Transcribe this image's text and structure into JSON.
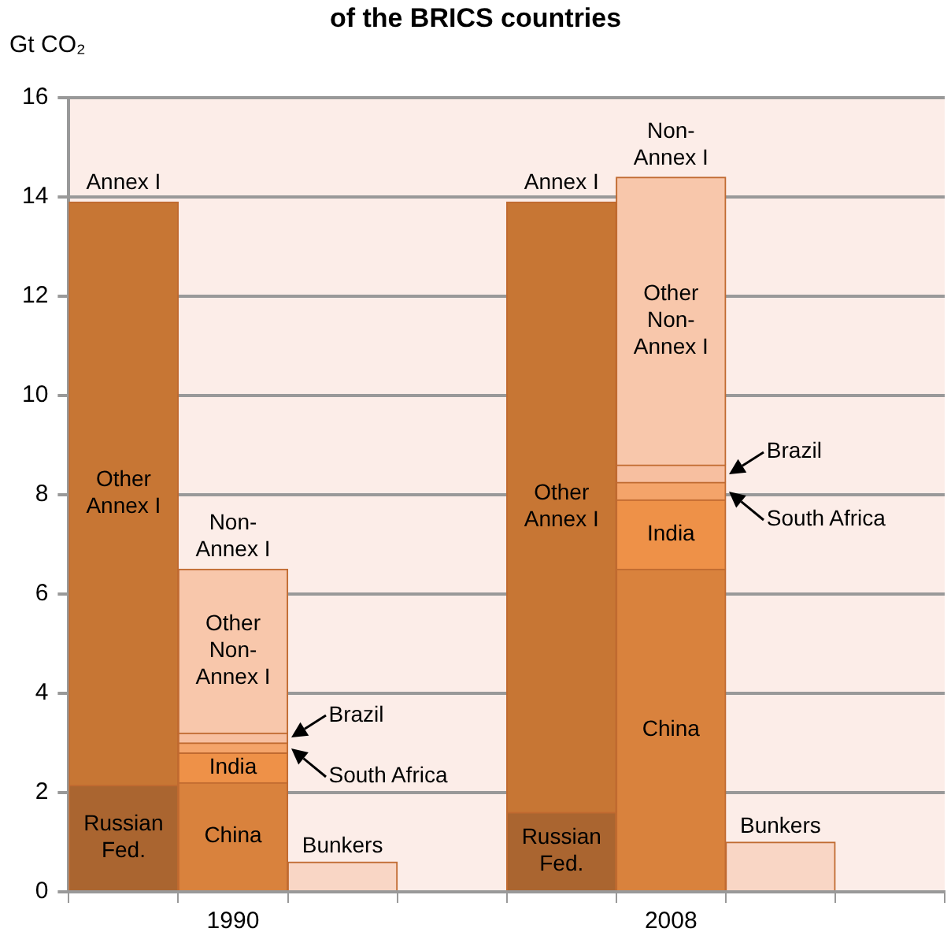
{
  "chart_data": {
    "type": "bar",
    "title": "of the BRICS countries",
    "ylabel": "Gt CO₂",
    "categories": [
      null,
      "1990",
      null,
      null,
      null,
      "2008",
      null,
      null
    ],
    "stacked": true,
    "series": [
      {
        "name": "Russian Fed.",
        "color": "#aa6530",
        "values": [
          2.15,
          null,
          null,
          null,
          1.6,
          null,
          null,
          null
        ]
      },
      {
        "name": "Other Annex I",
        "color": "#c77634",
        "values": [
          11.75,
          null,
          null,
          null,
          12.3,
          null,
          null,
          null
        ]
      },
      {
        "name": "China",
        "color": "#d9823d",
        "values": [
          null,
          2.2,
          null,
          null,
          null,
          6.5,
          null,
          null
        ]
      },
      {
        "name": "India",
        "color": "#ee9148",
        "values": [
          null,
          0.6,
          null,
          null,
          null,
          1.4,
          null,
          null
        ]
      },
      {
        "name": "South Africa",
        "color": "#f4a46a",
        "values": [
          null,
          0.2,
          null,
          null,
          null,
          0.35,
          null,
          null
        ]
      },
      {
        "name": "Brazil",
        "color": "#f7bfa0",
        "values": [
          null,
          0.2,
          null,
          null,
          null,
          0.35,
          null,
          null
        ]
      },
      {
        "name": "Other Non-Annex I",
        "color": "#f8c7ab",
        "values": [
          null,
          3.3,
          null,
          null,
          null,
          5.8,
          null,
          null
        ]
      },
      {
        "name": "Bunkers",
        "color": "#f9d6c5",
        "values": [
          null,
          null,
          0.6,
          null,
          null,
          null,
          1.0,
          null
        ]
      }
    ],
    "annotations": [
      "Annex I",
      "Non-Annex I",
      "Annex I",
      "Non-Annex I"
    ],
    "ylim": [
      0,
      16
    ],
    "yticks": [
      0,
      2,
      4,
      6,
      8,
      10,
      12,
      14,
      16
    ],
    "grid": "y",
    "legend": false
  }
}
